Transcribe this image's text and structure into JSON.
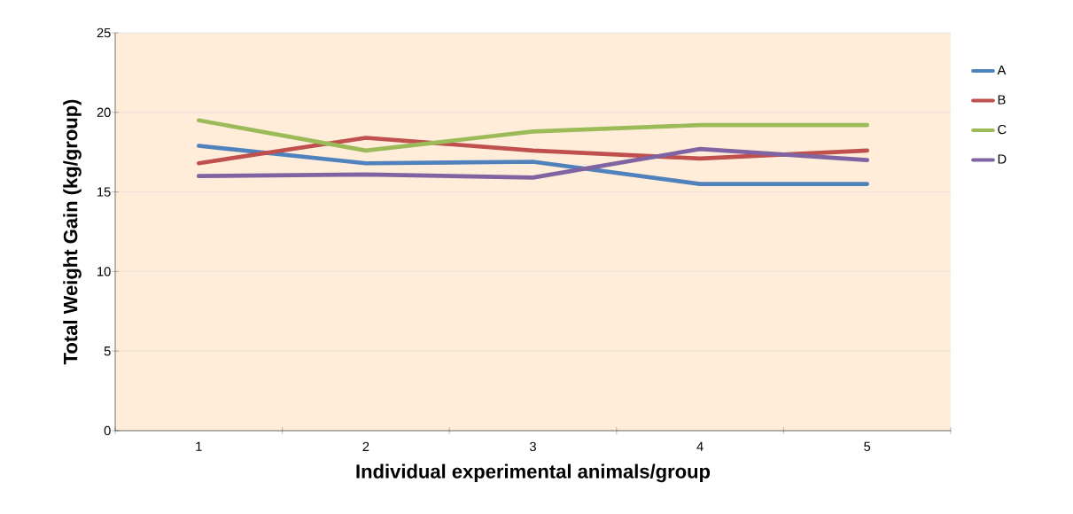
{
  "chart_data": {
    "type": "line",
    "xlabel": "Individual experimental animals/group",
    "ylabel": "Total Weight Gain (kg/group)",
    "categories": [
      "1",
      "2",
      "3",
      "4",
      "5"
    ],
    "series": [
      {
        "name": "A",
        "color": "#4f81bd",
        "values": [
          17.9,
          16.8,
          16.9,
          15.5,
          15.5
        ]
      },
      {
        "name": "B",
        "color": "#c0504d",
        "values": [
          16.8,
          18.4,
          17.6,
          17.1,
          17.6
        ]
      },
      {
        "name": "C",
        "color": "#9bbb59",
        "values": [
          19.5,
          17.6,
          18.8,
          19.2,
          19.2
        ]
      },
      {
        "name": "D",
        "color": "#8064a2",
        "values": [
          16.0,
          16.1,
          15.9,
          17.7,
          17.0
        ]
      }
    ],
    "ylim": [
      0,
      25
    ],
    "yticks": [
      0,
      5,
      10,
      15,
      20,
      25
    ],
    "grid": "y",
    "legend": "right",
    "marker": "none",
    "line_style": "solid"
  }
}
